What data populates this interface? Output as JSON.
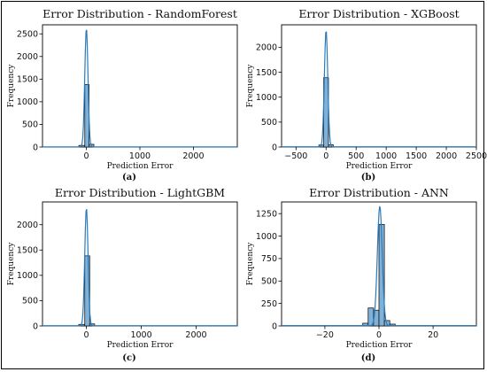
{
  "chart_data": [
    {
      "type": "bar",
      "title": "Error Distribution - RandomForest",
      "xlabel": "Prediction Error",
      "ylabel": "Frequency",
      "caption": "(a)",
      "xlim": [
        -820,
        2820
      ],
      "ylim": [
        0,
        2700
      ],
      "xticks": [
        0,
        1000,
        2000
      ],
      "yticks": [
        0,
        500,
        1000,
        1500,
        2000,
        2500
      ],
      "bins": [
        {
          "x0": -140,
          "x1": -30,
          "value": 35
        },
        {
          "x0": -30,
          "x1": 50,
          "value": 1380
        },
        {
          "x0": 50,
          "x1": 140,
          "value": 60
        }
      ],
      "kde": {
        "peak": 2620,
        "center": 0,
        "width": 30
      }
    },
    {
      "type": "bar",
      "title": "Error Distribution - XGBoost",
      "xlabel": "Prediction Error",
      "ylabel": "Frequency",
      "caption": "(b)",
      "xlim": [
        -740,
        2500
      ],
      "ylim": [
        0,
        2450
      ],
      "xticks": [
        -500,
        0,
        500,
        1000,
        1500,
        2000,
        2500
      ],
      "yticks": [
        0,
        500,
        1000,
        1500,
        2000
      ],
      "bins": [
        {
          "x0": -120,
          "x1": -40,
          "value": 40
        },
        {
          "x0": -40,
          "x1": 40,
          "value": 1390
        },
        {
          "x0": 40,
          "x1": 120,
          "value": 45
        }
      ],
      "kde": {
        "peak": 2340,
        "center": 0,
        "width": 28
      }
    },
    {
      "type": "bar",
      "title": "Error Distribution - LightGBM",
      "xlabel": "Prediction Error",
      "ylabel": "Frequency",
      "caption": "(c)",
      "xlim": [
        -800,
        2750
      ],
      "ylim": [
        0,
        2450
      ],
      "xticks": [
        0,
        1000,
        2000
      ],
      "yticks": [
        0,
        500,
        1000,
        1500,
        2000
      ],
      "bins": [
        {
          "x0": -140,
          "x1": -30,
          "value": 30
        },
        {
          "x0": -30,
          "x1": 60,
          "value": 1385
        },
        {
          "x0": 60,
          "x1": 150,
          "value": 40
        }
      ],
      "kde": {
        "peak": 2330,
        "center": 0,
        "width": 30
      }
    },
    {
      "type": "bar",
      "title": "Error Distribution - ANN",
      "xlabel": "Prediction Error",
      "ylabel": "Frequency",
      "caption": "(d)",
      "xlim": [
        -36,
        36
      ],
      "ylim": [
        0,
        1380
      ],
      "xticks": [
        -20,
        0,
        20
      ],
      "yticks": [
        0,
        250,
        500,
        750,
        1000,
        1250
      ],
      "bins": [
        {
          "x0": -6,
          "x1": -4,
          "value": 30
        },
        {
          "x0": -4,
          "x1": -2,
          "value": 200
        },
        {
          "x0": -2,
          "x1": 0,
          "value": 175
        },
        {
          "x0": 0,
          "x1": 2,
          "value": 1130
        },
        {
          "x0": 2,
          "x1": 4,
          "value": 60
        },
        {
          "x0": 4,
          "x1": 6,
          "value": 20
        }
      ],
      "kde": {
        "peak": 1330,
        "center": 0.3,
        "width": 0.9
      }
    }
  ]
}
